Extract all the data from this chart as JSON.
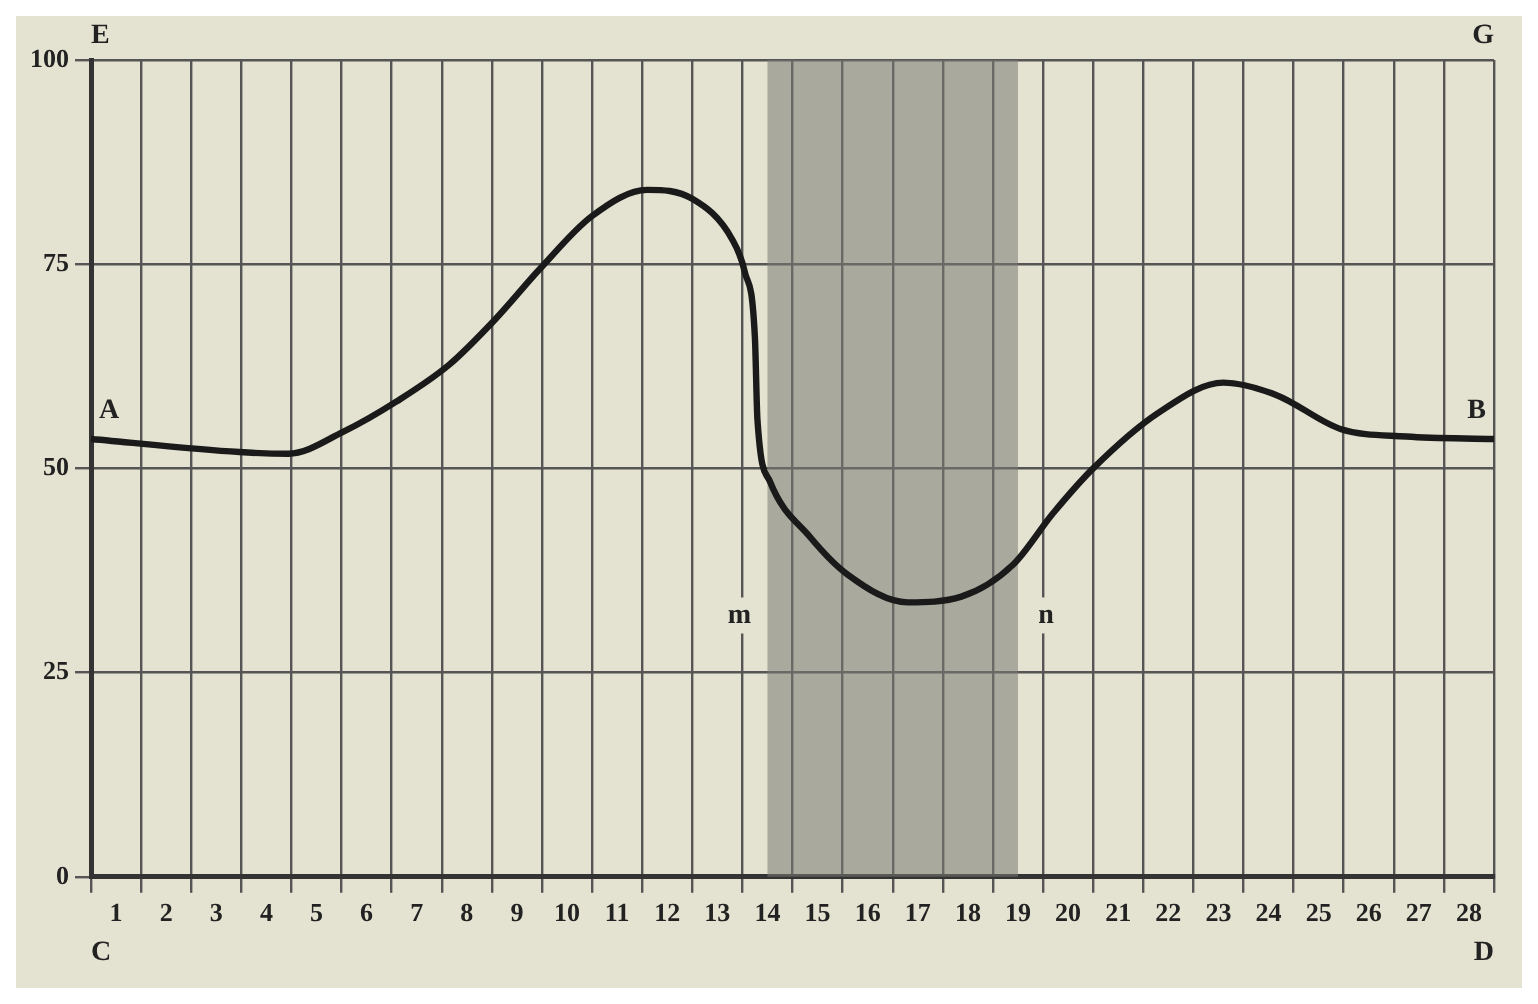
{
  "chart_data": {
    "type": "line",
    "x": [
      0.5,
      3.46,
      4.44,
      5.54,
      6.6,
      7.65,
      8.56,
      9.47,
      10.5,
      11.6,
      12.5,
      13.3,
      13.55,
      13.75,
      13.8,
      14.05,
      14.85,
      15.6,
      16.8,
      17.87,
      18.9,
      19.7,
      20.5,
      21.8,
      23.1,
      24.15,
      25.45,
      26.75,
      28.5
    ],
    "series": [
      {
        "color": "#1a1a1a",
        "values": [
          53.6,
          52,
          51.8,
          54.5,
          58.2,
          62.7,
          68.2,
          74.5,
          80.9,
          84.1,
          83,
          78,
          74,
          66,
          56,
          48.4,
          41.6,
          37,
          33.6,
          34.3,
          38.2,
          44.5,
          50,
          56.8,
          60.5,
          59,
          54.8,
          53.9,
          53.6
        ]
      }
    ],
    "xlim": [
      0.5,
      28.5
    ],
    "xticks": [
      1,
      2,
      3,
      4,
      5,
      6,
      7,
      8,
      9,
      10,
      11,
      12,
      13,
      14,
      15,
      16,
      17,
      18,
      19,
      20,
      21,
      22,
      23,
      24,
      25,
      26,
      27,
      28
    ],
    "ylim": [
      0,
      100
    ],
    "yticks": [
      0,
      25,
      50,
      75,
      100
    ],
    "grid": true,
    "marker": "none",
    "line_style": "solid",
    "bands": [
      {
        "axis": "x",
        "from": 14,
        "to": 19,
        "color": "#7a7a72"
      }
    ],
    "annotations": [
      "E",
      "G",
      "C",
      "D",
      {
        "text": "A",
        "x": 0.5,
        "y": 53.6
      },
      {
        "text": "B",
        "x": 28.5,
        "y": 53.6
      },
      "m",
      "n"
    ]
  }
}
